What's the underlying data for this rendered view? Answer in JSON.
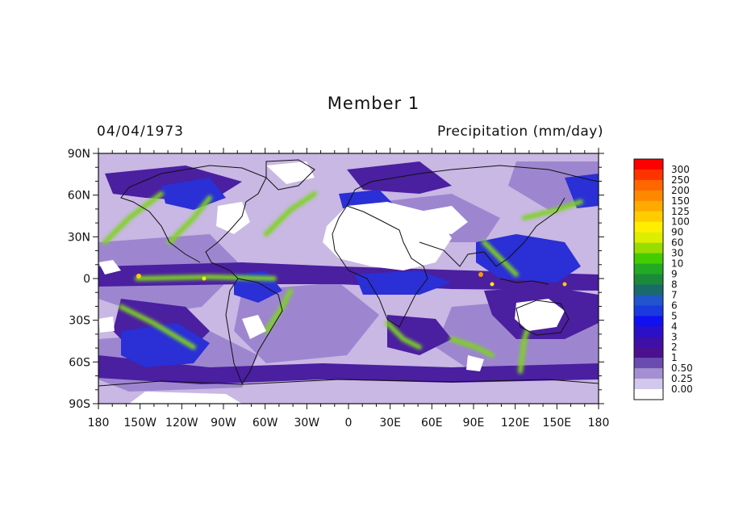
{
  "figure": {
    "title": "Member 1",
    "date": "04/04/1973",
    "variable": "Precipitation (mm/day)"
  },
  "map": {
    "projection": "cylindrical equidistant",
    "lon_range": [
      -180,
      180
    ],
    "lat_range": [
      -90,
      90
    ],
    "lon_ticks": [
      "180",
      "150W",
      "120W",
      "90W",
      "60W",
      "30W",
      "0",
      "30E",
      "60E",
      "90E",
      "120E",
      "150E",
      "180"
    ],
    "lat_ticks": [
      "90N",
      "60N",
      "30N",
      "0",
      "30S",
      "60S",
      "90S"
    ],
    "coastlines": true,
    "field_description_colors": {
      "dry": "#ffffff",
      "light": "#c9b7e4",
      "medium": "#9d86cf",
      "heavy": "#4a1fa0",
      "convective": "#2a2fd6",
      "intense": "#7ed321"
    }
  },
  "legend": {
    "levels": [
      "300",
      "250",
      "200",
      "150",
      "125",
      "100",
      "90",
      "60",
      "30",
      "10",
      "9",
      "8",
      "7",
      "6",
      "5",
      "4",
      "3",
      "2",
      "1",
      "0.50",
      "0.25",
      "0.00"
    ],
    "colors": [
      "#ff0000",
      "#ff3300",
      "#ff6600",
      "#ff8800",
      "#ffaa00",
      "#ffcc00",
      "#ffee00",
      "#ddee00",
      "#99dd00",
      "#44cc00",
      "#22aa22",
      "#1a8a3a",
      "#1a6a6a",
      "#2255cc",
      "#1a3ae0",
      "#1010f0",
      "#2a10c8",
      "#3d10a8",
      "#4a1090",
      "#6a4cb0",
      "#a48fd2",
      "#d2c7ec",
      "#ffffff"
    ]
  }
}
